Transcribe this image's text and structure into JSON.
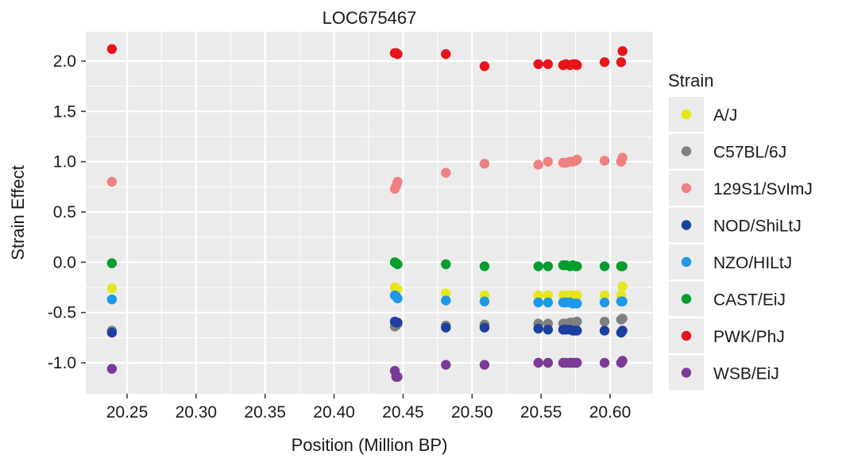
{
  "chart_data": {
    "type": "scatter",
    "title": "LOC675467",
    "xlabel": "Position (Million BP)",
    "ylabel": "Strain Effect",
    "xlim": [
      20.22,
      20.625
    ],
    "ylim": [
      -1.3,
      2.3
    ],
    "x_ticks": [
      "20.25",
      "20.30",
      "20.35",
      "20.40",
      "20.45",
      "20.50",
      "20.55",
      "20.60"
    ],
    "y_ticks": [
      "2.0",
      "1.5",
      "1.0",
      "0.5",
      "0.0",
      "-0.5",
      "-1.0"
    ],
    "x_tick_values": [
      20.25,
      20.3,
      20.35,
      20.4,
      20.45,
      20.5,
      20.55,
      20.6
    ],
    "y_tick_values": [
      2.0,
      1.5,
      1.0,
      0.5,
      0.0,
      -0.5,
      -1.0
    ],
    "grid": true,
    "legend": {
      "title": "Strain",
      "position": "right"
    },
    "background_color": "#ebebeb",
    "grid_color": "#ffffff",
    "x_positions": [
      20.239,
      20.444,
      20.445,
      20.446,
      20.481,
      20.509,
      20.548,
      20.555,
      20.566,
      20.568,
      20.571,
      20.573,
      20.575,
      20.576,
      20.596,
      20.608,
      20.609
    ],
    "series": [
      {
        "name": "A/J",
        "color": "#e6e61a",
        "y": [
          -0.26,
          -0.25,
          -0.28,
          -0.27,
          -0.31,
          -0.33,
          -0.33,
          -0.33,
          -0.33,
          -0.33,
          -0.33,
          -0.33,
          -0.33,
          -0.33,
          -0.33,
          -0.33,
          -0.24
        ]
      },
      {
        "name": "C57BL/6J",
        "color": "#808080",
        "y": [
          -0.68,
          -0.64,
          -0.63,
          -0.61,
          -0.63,
          -0.62,
          -0.61,
          -0.61,
          -0.61,
          -0.61,
          -0.6,
          -0.6,
          -0.6,
          -0.59,
          -0.59,
          -0.57,
          -0.56
        ]
      },
      {
        "name": "129S1/SvImJ",
        "color": "#f08080",
        "y": [
          0.8,
          0.73,
          0.76,
          0.8,
          0.89,
          0.98,
          0.97,
          1.0,
          0.99,
          0.99,
          1.0,
          1.0,
          1.01,
          1.02,
          1.01,
          1.0,
          1.04
        ]
      },
      {
        "name": "NOD/ShiLtJ",
        "color": "#1c3fa0",
        "y": [
          -0.7,
          -0.59,
          -0.6,
          -0.6,
          -0.65,
          -0.65,
          -0.66,
          -0.67,
          -0.67,
          -0.67,
          -0.67,
          -0.68,
          -0.68,
          -0.68,
          -0.68,
          -0.7,
          -0.68
        ]
      },
      {
        "name": "NZO/HILtJ",
        "color": "#1e98e8",
        "y": [
          -0.37,
          -0.33,
          -0.34,
          -0.36,
          -0.38,
          -0.39,
          -0.4,
          -0.4,
          -0.4,
          -0.4,
          -0.4,
          -0.41,
          -0.41,
          -0.41,
          -0.4,
          -0.39,
          -0.39
        ]
      },
      {
        "name": "CAST/EiJ",
        "color": "#009e2e",
        "y": [
          -0.01,
          0.0,
          -0.01,
          -0.02,
          -0.02,
          -0.04,
          -0.04,
          -0.04,
          -0.03,
          -0.03,
          -0.04,
          -0.03,
          -0.04,
          -0.04,
          -0.04,
          -0.04,
          -0.04
        ]
      },
      {
        "name": "PWK/PhJ",
        "color": "#e8141c",
        "y": [
          2.12,
          2.08,
          2.08,
          2.07,
          2.07,
          1.95,
          1.97,
          1.97,
          1.96,
          1.97,
          1.96,
          1.97,
          1.97,
          1.96,
          1.99,
          1.99,
          2.1
        ]
      },
      {
        "name": "WSB/EiJ",
        "color": "#7b3a96",
        "y": [
          -1.06,
          -1.08,
          -1.14,
          -1.14,
          -1.02,
          -1.02,
          -1.0,
          -1.0,
          -1.0,
          -1.0,
          -1.0,
          -1.0,
          -1.0,
          -1.0,
          -1.0,
          -1.0,
          -0.98
        ]
      }
    ]
  }
}
